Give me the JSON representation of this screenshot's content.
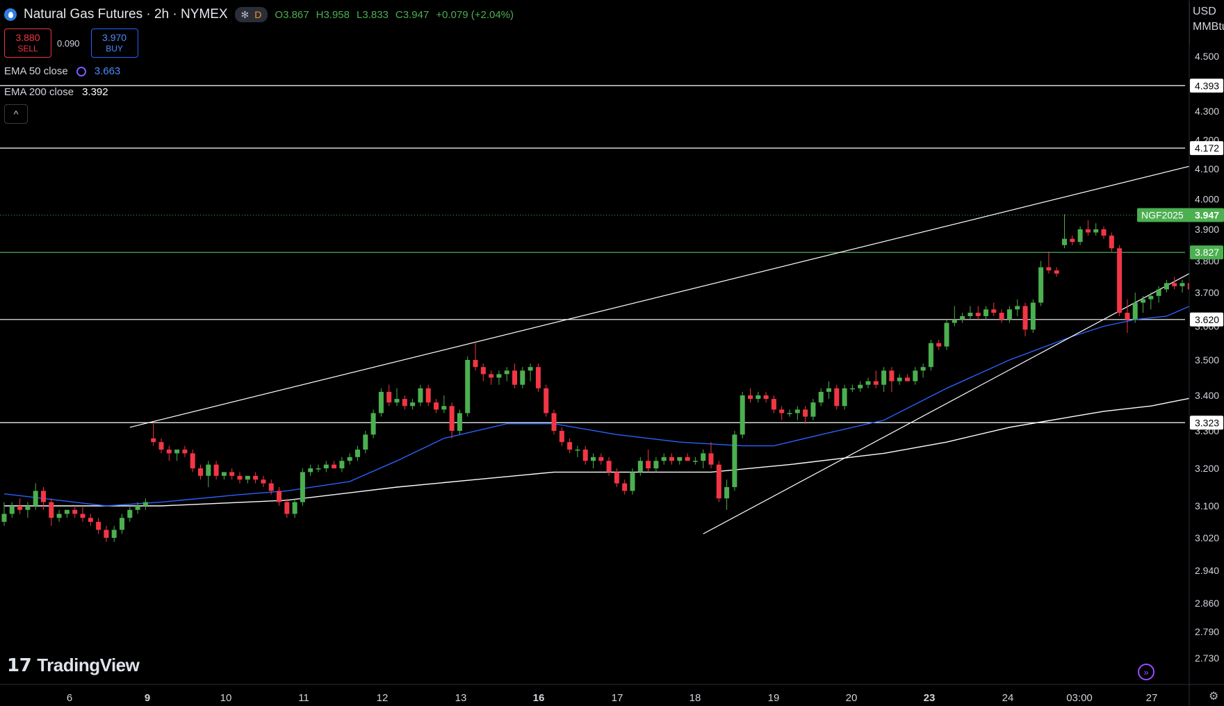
{
  "header": {
    "title": "Natural Gas Futures · 2h · NYMEX",
    "interval_badge": "D",
    "ohlc": {
      "open": "O3.867",
      "high": "H3.958",
      "low": "L3.833",
      "close": "C3.947",
      "change": "+0.079 (+2.04%)"
    }
  },
  "trade": {
    "sell_price": "3.880",
    "sell_label": "SELL",
    "spread": "0.090",
    "buy_price": "3.970",
    "buy_label": "BUY"
  },
  "indicators": [
    {
      "name": "EMA 50 close",
      "value": "3.663",
      "color": "#2962ff"
    },
    {
      "name": "EMA 200 close",
      "value": "3.392",
      "color": "#ffffff"
    }
  ],
  "axis_unit": {
    "line1": "USD",
    "line2": "MMBtu"
  },
  "branding": {
    "logo_text": "TradingView"
  },
  "colors": {
    "up": "#4caf50",
    "down": "#f23645",
    "ema50": "#2962ff",
    "ema200": "#ffffff",
    "background": "#000000"
  },
  "chart_data": {
    "type": "candlestick",
    "symbol_label": "NGF2025",
    "last_price": 3.947,
    "y_ticks": [
      4.5,
      4.3,
      4.2,
      4.1,
      4.0,
      3.9,
      3.8,
      3.7,
      3.6,
      3.5,
      3.4,
      3.3,
      3.2,
      3.1,
      3.02,
      2.94,
      2.86,
      2.79,
      2.73
    ],
    "y_tick_labels": [
      "4.500",
      "4.300",
      "4.200",
      "4.100",
      "4.000",
      "3.900",
      "3.800",
      "3.700",
      "3.600",
      "3.500",
      "3.400",
      "3.300",
      "3.200",
      "3.100",
      "3.020",
      "2.940",
      "2.860",
      "2.790",
      "2.730"
    ],
    "x_labels": [
      "6",
      "9",
      "10",
      "11",
      "12",
      "13",
      "16",
      "17",
      "18",
      "19",
      "20",
      "23",
      "24",
      "03:00",
      "27"
    ],
    "bold_x_labels": [
      "9",
      "16",
      "23"
    ],
    "horizontal_levels": [
      {
        "value": 4.393,
        "label": "4.393",
        "color": "#ffffff"
      },
      {
        "value": 4.172,
        "label": "4.172",
        "color": "#ffffff"
      },
      {
        "value": 3.827,
        "label": "3.827",
        "color": "#4caf50"
      },
      {
        "value": 3.62,
        "label": "3.620",
        "color": "#ffffff"
      },
      {
        "value": 3.323,
        "label": "3.323",
        "color": "#ffffff"
      }
    ],
    "trendlines": [
      {
        "from_index": 16,
        "from_price": 3.31,
        "to_index": 160,
        "to_price": 4.17
      },
      {
        "from_index": 89,
        "from_price": 3.03,
        "to_index": 165,
        "to_price": 3.95
      }
    ],
    "ema50": [
      [
        0,
        3.132
      ],
      [
        13,
        3.1
      ],
      [
        20,
        3.11
      ],
      [
        30,
        3.13
      ],
      [
        36,
        3.14
      ],
      [
        44,
        3.165
      ],
      [
        50,
        3.22
      ],
      [
        56,
        3.28
      ],
      [
        64,
        3.32
      ],
      [
        70,
        3.32
      ],
      [
        78,
        3.29
      ],
      [
        86,
        3.27
      ],
      [
        94,
        3.26
      ],
      [
        98,
        3.26
      ],
      [
        104,
        3.29
      ],
      [
        112,
        3.33
      ],
      [
        120,
        3.42
      ],
      [
        128,
        3.5
      ],
      [
        136,
        3.57
      ],
      [
        140,
        3.6
      ],
      [
        144,
        3.62
      ],
      [
        148,
        3.63
      ],
      [
        151,
        3.66
      ]
    ],
    "ema200": [
      [
        0,
        3.1
      ],
      [
        20,
        3.1
      ],
      [
        36,
        3.115
      ],
      [
        50,
        3.15
      ],
      [
        60,
        3.17
      ],
      [
        70,
        3.19
      ],
      [
        80,
        3.19
      ],
      [
        90,
        3.19
      ],
      [
        100,
        3.21
      ],
      [
        112,
        3.24
      ],
      [
        120,
        3.27
      ],
      [
        128,
        3.31
      ],
      [
        136,
        3.34
      ],
      [
        140,
        3.355
      ],
      [
        146,
        3.37
      ],
      [
        151,
        3.392
      ]
    ],
    "candles": [
      [
        3.06,
        3.11,
        3.05,
        3.08
      ],
      [
        3.08,
        3.11,
        3.07,
        3.1
      ],
      [
        3.1,
        3.12,
        3.08,
        3.09
      ],
      [
        3.09,
        3.11,
        3.07,
        3.1
      ],
      [
        3.1,
        3.16,
        3.09,
        3.14
      ],
      [
        3.14,
        3.15,
        3.09,
        3.11
      ],
      [
        3.11,
        3.12,
        3.05,
        3.07
      ],
      [
        3.07,
        3.09,
        3.06,
        3.08
      ],
      [
        3.08,
        3.09,
        3.07,
        3.09
      ],
      [
        3.09,
        3.1,
        3.07,
        3.08
      ],
      [
        3.08,
        3.1,
        3.06,
        3.07
      ],
      [
        3.07,
        3.08,
        3.05,
        3.06
      ],
      [
        3.06,
        3.07,
        3.03,
        3.04
      ],
      [
        3.04,
        3.05,
        3.01,
        3.02
      ],
      [
        3.02,
        3.05,
        3.01,
        3.04
      ],
      [
        3.04,
        3.08,
        3.03,
        3.07
      ],
      [
        3.07,
        3.1,
        3.06,
        3.09
      ],
      [
        3.09,
        3.11,
        3.08,
        3.1
      ],
      [
        3.1,
        3.12,
        3.09,
        3.11
      ],
      [
        3.28,
        3.32,
        3.26,
        3.27
      ],
      [
        3.27,
        3.28,
        3.24,
        3.25
      ],
      [
        3.25,
        3.26,
        3.22,
        3.24
      ],
      [
        3.24,
        3.25,
        3.22,
        3.25
      ],
      [
        3.25,
        3.26,
        3.23,
        3.24
      ],
      [
        3.24,
        3.25,
        3.19,
        3.2
      ],
      [
        3.2,
        3.21,
        3.17,
        3.18
      ],
      [
        3.18,
        3.22,
        3.15,
        3.21
      ],
      [
        3.21,
        3.22,
        3.17,
        3.18
      ],
      [
        3.18,
        3.19,
        3.17,
        3.19
      ],
      [
        3.19,
        3.2,
        3.17,
        3.18
      ],
      [
        3.18,
        3.19,
        3.16,
        3.17
      ],
      [
        3.17,
        3.18,
        3.16,
        3.18
      ],
      [
        3.18,
        3.19,
        3.16,
        3.17
      ],
      [
        3.17,
        3.18,
        3.15,
        3.16
      ],
      [
        3.16,
        3.17,
        3.13,
        3.14
      ],
      [
        3.14,
        3.15,
        3.1,
        3.11
      ],
      [
        3.11,
        3.12,
        3.07,
        3.08
      ],
      [
        3.08,
        3.12,
        3.07,
        3.11
      ],
      [
        3.11,
        3.2,
        3.1,
        3.19
      ],
      [
        3.19,
        3.21,
        3.18,
        3.2
      ],
      [
        3.2,
        3.21,
        3.19,
        3.2
      ],
      [
        3.2,
        3.22,
        3.19,
        3.21
      ],
      [
        3.21,
        3.22,
        3.2,
        3.2
      ],
      [
        3.2,
        3.23,
        3.19,
        3.22
      ],
      [
        3.22,
        3.24,
        3.21,
        3.23
      ],
      [
        3.23,
        3.26,
        3.22,
        3.25
      ],
      [
        3.25,
        3.3,
        3.24,
        3.29
      ],
      [
        3.29,
        3.36,
        3.28,
        3.35
      ],
      [
        3.35,
        3.42,
        3.34,
        3.41
      ],
      [
        3.41,
        3.43,
        3.37,
        3.38
      ],
      [
        3.38,
        3.42,
        3.37,
        3.39
      ],
      [
        3.39,
        3.4,
        3.36,
        3.37
      ],
      [
        3.37,
        3.39,
        3.36,
        3.38
      ],
      [
        3.38,
        3.43,
        3.37,
        3.42
      ],
      [
        3.42,
        3.43,
        3.37,
        3.38
      ],
      [
        3.38,
        3.39,
        3.35,
        3.36
      ],
      [
        3.36,
        3.4,
        3.35,
        3.37
      ],
      [
        3.37,
        3.38,
        3.28,
        3.3
      ],
      [
        3.3,
        3.36,
        3.29,
        3.35
      ],
      [
        3.35,
        3.51,
        3.34,
        3.5
      ],
      [
        3.5,
        3.55,
        3.47,
        3.48
      ],
      [
        3.48,
        3.49,
        3.44,
        3.46
      ],
      [
        3.46,
        3.47,
        3.43,
        3.45
      ],
      [
        3.45,
        3.47,
        3.43,
        3.46
      ],
      [
        3.46,
        3.48,
        3.44,
        3.47
      ],
      [
        3.47,
        3.49,
        3.42,
        3.43
      ],
      [
        3.43,
        3.48,
        3.42,
        3.47
      ],
      [
        3.47,
        3.49,
        3.44,
        3.48
      ],
      [
        3.48,
        3.49,
        3.41,
        3.42
      ],
      [
        3.42,
        3.43,
        3.34,
        3.35
      ],
      [
        3.35,
        3.36,
        3.29,
        3.3
      ],
      [
        3.3,
        3.31,
        3.26,
        3.27
      ],
      [
        3.27,
        3.28,
        3.24,
        3.25
      ],
      [
        3.25,
        3.26,
        3.23,
        3.25
      ],
      [
        3.25,
        3.26,
        3.21,
        3.22
      ],
      [
        3.22,
        3.24,
        3.2,
        3.23
      ],
      [
        3.23,
        3.24,
        3.21,
        3.22
      ],
      [
        3.22,
        3.23,
        3.18,
        3.19
      ],
      [
        3.19,
        3.2,
        3.15,
        3.16
      ],
      [
        3.16,
        3.17,
        3.13,
        3.14
      ],
      [
        3.14,
        3.2,
        3.13,
        3.19
      ],
      [
        3.19,
        3.23,
        3.18,
        3.22
      ],
      [
        3.22,
        3.25,
        3.19,
        3.2
      ],
      [
        3.2,
        3.23,
        3.19,
        3.22
      ],
      [
        3.22,
        3.24,
        3.21,
        3.23
      ],
      [
        3.23,
        3.24,
        3.21,
        3.22
      ],
      [
        3.22,
        3.23,
        3.21,
        3.23
      ],
      [
        3.23,
        3.24,
        3.22,
        3.22
      ],
      [
        3.22,
        3.23,
        3.21,
        3.22
      ],
      [
        3.22,
        3.25,
        3.2,
        3.24
      ],
      [
        3.24,
        3.27,
        3.2,
        3.21
      ],
      [
        3.21,
        3.22,
        3.11,
        3.12
      ],
      [
        3.12,
        3.17,
        3.09,
        3.15
      ],
      [
        3.15,
        3.3,
        3.14,
        3.29
      ],
      [
        3.29,
        3.41,
        3.28,
        3.4
      ],
      [
        3.4,
        3.42,
        3.38,
        3.39
      ],
      [
        3.39,
        3.41,
        3.38,
        3.4
      ],
      [
        3.4,
        3.41,
        3.38,
        3.39
      ],
      [
        3.39,
        3.4,
        3.35,
        3.36
      ],
      [
        3.36,
        3.37,
        3.33,
        3.35
      ],
      [
        3.35,
        3.36,
        3.34,
        3.35
      ],
      [
        3.35,
        3.37,
        3.33,
        3.36
      ],
      [
        3.36,
        3.37,
        3.32,
        3.34
      ],
      [
        3.34,
        3.39,
        3.33,
        3.38
      ],
      [
        3.38,
        3.42,
        3.37,
        3.41
      ],
      [
        3.41,
        3.44,
        3.39,
        3.42
      ],
      [
        3.42,
        3.43,
        3.36,
        3.37
      ],
      [
        3.37,
        3.43,
        3.36,
        3.42
      ],
      [
        3.42,
        3.43,
        3.41,
        3.42
      ],
      [
        3.42,
        3.44,
        3.41,
        3.43
      ],
      [
        3.43,
        3.45,
        3.42,
        3.44
      ],
      [
        3.44,
        3.47,
        3.42,
        3.43
      ],
      [
        3.43,
        3.48,
        3.41,
        3.47
      ],
      [
        3.47,
        3.48,
        3.41,
        3.44
      ],
      [
        3.44,
        3.46,
        3.43,
        3.45
      ],
      [
        3.45,
        3.46,
        3.44,
        3.44
      ],
      [
        3.44,
        3.48,
        3.43,
        3.47
      ],
      [
        3.47,
        3.49,
        3.45,
        3.48
      ],
      [
        3.48,
        3.56,
        3.47,
        3.55
      ],
      [
        3.55,
        3.56,
        3.53,
        3.54
      ],
      [
        3.54,
        3.62,
        3.53,
        3.61
      ],
      [
        3.61,
        3.66,
        3.6,
        3.62
      ],
      [
        3.62,
        3.64,
        3.61,
        3.63
      ],
      [
        3.63,
        3.66,
        3.62,
        3.64
      ],
      [
        3.64,
        3.66,
        3.62,
        3.63
      ],
      [
        3.63,
        3.66,
        3.62,
        3.65
      ],
      [
        3.65,
        3.67,
        3.63,
        3.64
      ],
      [
        3.64,
        3.65,
        3.61,
        3.62
      ],
      [
        3.62,
        3.66,
        3.61,
        3.65
      ],
      [
        3.65,
        3.68,
        3.63,
        3.66
      ],
      [
        3.66,
        3.67,
        3.57,
        3.59
      ],
      [
        3.59,
        3.68,
        3.58,
        3.67
      ],
      [
        3.67,
        3.8,
        3.66,
        3.78
      ],
      [
        3.78,
        3.83,
        3.76,
        3.77
      ],
      [
        3.77,
        3.78,
        3.75,
        3.76
      ],
      [
        3.85,
        3.95,
        3.84,
        3.87
      ],
      [
        3.87,
        3.88,
        3.85,
        3.86
      ],
      [
        3.86,
        3.91,
        3.85,
        3.9
      ],
      [
        3.9,
        3.93,
        3.88,
        3.89
      ],
      [
        3.89,
        3.92,
        3.88,
        3.9
      ],
      [
        3.9,
        3.91,
        3.87,
        3.88
      ],
      [
        3.88,
        3.89,
        3.83,
        3.84
      ],
      [
        3.84,
        3.85,
        3.63,
        3.64
      ],
      [
        3.64,
        3.68,
        3.58,
        3.62
      ],
      [
        3.62,
        3.7,
        3.61,
        3.67
      ],
      [
        3.67,
        3.69,
        3.64,
        3.68
      ],
      [
        3.68,
        3.7,
        3.65,
        3.69
      ],
      [
        3.69,
        3.72,
        3.67,
        3.71
      ],
      [
        3.71,
        3.74,
        3.7,
        3.73
      ],
      [
        3.73,
        3.75,
        3.71,
        3.72
      ],
      [
        3.72,
        3.74,
        3.7,
        3.73
      ],
      [
        3.73,
        3.75,
        3.7,
        3.71
      ],
      [
        3.71,
        3.72,
        3.66,
        3.68
      ],
      [
        3.68,
        3.76,
        3.67,
        3.75
      ],
      [
        3.75,
        3.77,
        3.72,
        3.76
      ],
      [
        3.76,
        3.84,
        3.75,
        3.83
      ],
      [
        3.83,
        3.86,
        3.81,
        3.84
      ],
      [
        3.84,
        3.96,
        3.83,
        3.95
      ]
    ]
  }
}
